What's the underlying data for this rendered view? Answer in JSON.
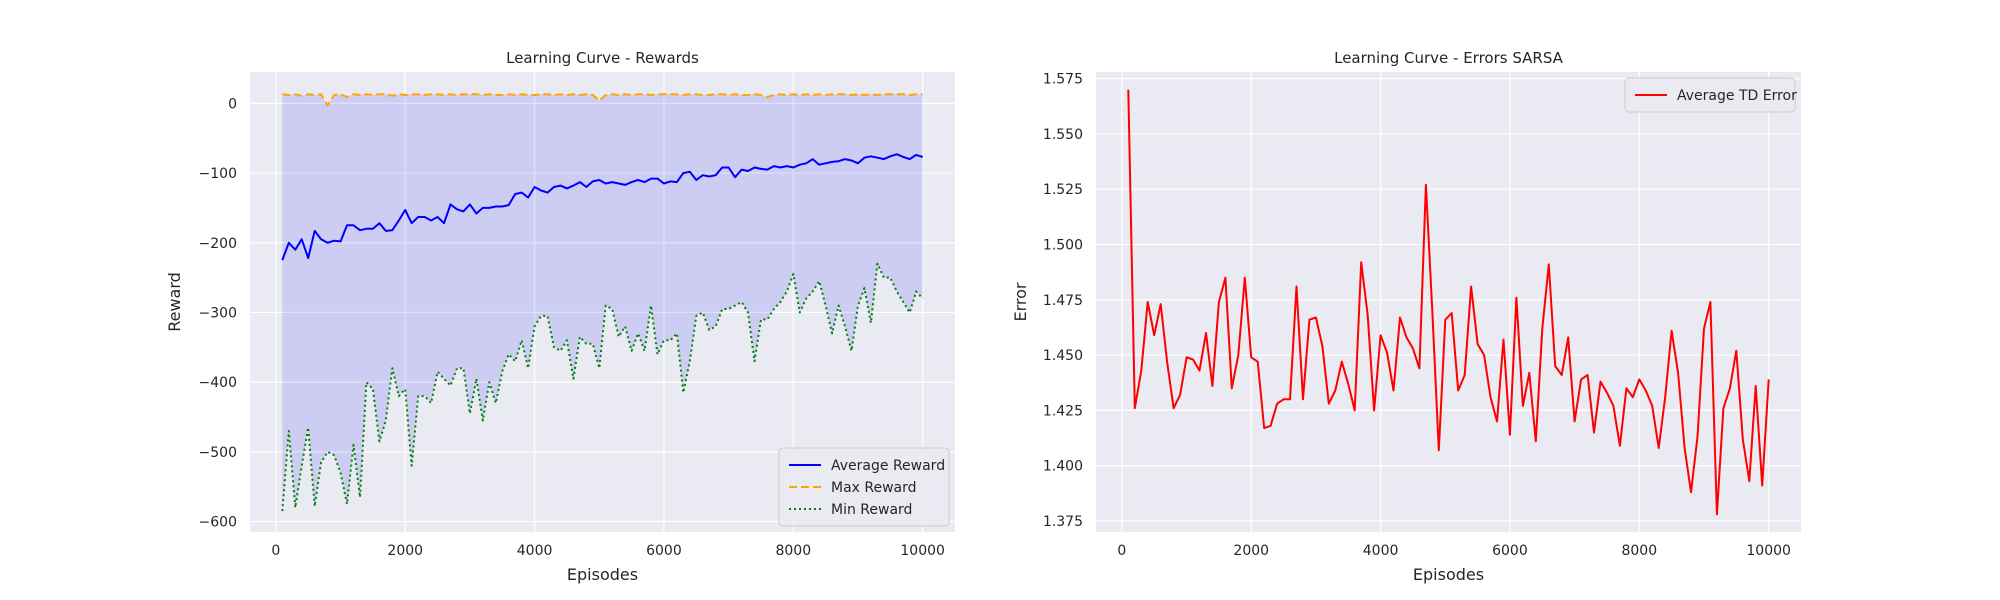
{
  "chart_data": [
    {
      "type": "line",
      "title": "Learning Curve - Rewards",
      "xlabel": "Episodes",
      "ylabel": "Reward",
      "xlim": [
        -400,
        10500
      ],
      "ylim": [
        -615,
        45
      ],
      "xticks": [
        0,
        2000,
        4000,
        6000,
        8000,
        10000
      ],
      "yticks": [
        0,
        -100,
        -200,
        -300,
        -400,
        -500,
        -600
      ],
      "grid": true,
      "legend_position": "lower-right",
      "fill_between": {
        "upper": "Max Reward",
        "lower": "Min Reward",
        "color": "#0000ff",
        "opacity": 0.12
      },
      "x": [
        100,
        200,
        300,
        400,
        500,
        600,
        700,
        800,
        900,
        1000,
        1100,
        1200,
        1300,
        1400,
        1500,
        1600,
        1700,
        1800,
        1900,
        2000,
        2100,
        2200,
        2300,
        2400,
        2500,
        2600,
        2700,
        2800,
        2900,
        3000,
        3100,
        3200,
        3300,
        3400,
        3500,
        3600,
        3700,
        3800,
        3900,
        4000,
        4100,
        4200,
        4300,
        4400,
        4500,
        4600,
        4700,
        4800,
        4900,
        5000,
        5100,
        5200,
        5300,
        5400,
        5500,
        5600,
        5700,
        5800,
        5900,
        6000,
        6100,
        6200,
        6300,
        6400,
        6500,
        6600,
        6700,
        6800,
        6900,
        7000,
        7100,
        7200,
        7300,
        7400,
        7500,
        7600,
        7700,
        7800,
        7900,
        8000,
        8100,
        8200,
        8300,
        8400,
        8500,
        8600,
        8700,
        8800,
        8900,
        9000,
        9100,
        9200,
        9300,
        9400,
        9500,
        9600,
        9700,
        9800,
        9900,
        10000
      ],
      "series": [
        {
          "name": "Average Reward",
          "color": "#0000ff",
          "dash": "solid",
          "values": [
            -225,
            -200,
            -210,
            -195,
            -222,
            -183,
            -195,
            -200,
            -197,
            -198,
            -175,
            -175,
            -182,
            -180,
            -180,
            -172,
            -183,
            -182,
            -168,
            -153,
            -172,
            -163,
            -163,
            -168,
            -163,
            -172,
            -145,
            -152,
            -155,
            -145,
            -158,
            -150,
            -150,
            -148,
            -148,
            -146,
            -130,
            -128,
            -135,
            -120,
            -125,
            -128,
            -120,
            -118,
            -122,
            -118,
            -113,
            -120,
            -112,
            -110,
            -115,
            -113,
            -115,
            -117,
            -113,
            -110,
            -113,
            -108,
            -108,
            -115,
            -112,
            -113,
            -100,
            -98,
            -110,
            -103,
            -105,
            -103,
            -92,
            -92,
            -106,
            -95,
            -97,
            -92,
            -94,
            -95,
            -90,
            -92,
            -90,
            -92,
            -88,
            -86,
            -80,
            -88,
            -86,
            -84,
            -83,
            -80,
            -82,
            -86,
            -78,
            -76,
            -78,
            -80,
            -76,
            -73,
            -77,
            -80,
            -74,
            -77
          ]
        },
        {
          "name": "Max Reward",
          "color": "#ffa500",
          "dash": "dashed",
          "values": [
            13,
            12,
            13,
            11,
            13,
            12,
            13,
            -3,
            12,
            13,
            9,
            13,
            12,
            13,
            12,
            13,
            13,
            11,
            13,
            12,
            13,
            13,
            12,
            13,
            13,
            12,
            13,
            12,
            13,
            13,
            13,
            12,
            13,
            12,
            12,
            13,
            12,
            13,
            12,
            12,
            13,
            13,
            12,
            13,
            12,
            13,
            12,
            13,
            12,
            4,
            12,
            13,
            12,
            13,
            12,
            13,
            13,
            12,
            13,
            13,
            13,
            13,
            12,
            13,
            13,
            12,
            12,
            13,
            13,
            12,
            13,
            12,
            12,
            13,
            12,
            9,
            12,
            13,
            12,
            13,
            12,
            13,
            12,
            13,
            12,
            13,
            13,
            13,
            12,
            13,
            12,
            13,
            12,
            13,
            13,
            13,
            13,
            12,
            13,
            13
          ]
        },
        {
          "name": "Min Reward",
          "color": "#008000",
          "dash": "dotted",
          "values": [
            -585,
            -470,
            -580,
            -520,
            -465,
            -578,
            -515,
            -500,
            -505,
            -530,
            -575,
            -490,
            -565,
            -400,
            -410,
            -485,
            -455,
            -380,
            -420,
            -410,
            -520,
            -420,
            -420,
            -430,
            -385,
            -395,
            -405,
            -380,
            -380,
            -445,
            -395,
            -455,
            -400,
            -430,
            -385,
            -360,
            -370,
            -340,
            -380,
            -320,
            -305,
            -305,
            -350,
            -355,
            -340,
            -395,
            -335,
            -345,
            -345,
            -380,
            -290,
            -295,
            -335,
            -320,
            -355,
            -330,
            -355,
            -290,
            -360,
            -340,
            -340,
            -330,
            -415,
            -370,
            -305,
            -300,
            -325,
            -320,
            -295,
            -295,
            -290,
            -285,
            -300,
            -370,
            -310,
            -310,
            -295,
            -285,
            -270,
            -245,
            -300,
            -280,
            -270,
            -255,
            -290,
            -330,
            -290,
            -320,
            -355,
            -290,
            -265,
            -315,
            -230,
            -250,
            -250,
            -270,
            -285,
            -300,
            -270,
            -280
          ]
        }
      ]
    },
    {
      "type": "line",
      "title": "Learning Curve - Errors SARSA",
      "xlabel": "Episodes",
      "ylabel": "Error",
      "xlim": [
        -400,
        10500
      ],
      "ylim": [
        1.37,
        1.578
      ],
      "xticks": [
        0,
        2000,
        4000,
        6000,
        8000,
        10000
      ],
      "yticks": [
        1.375,
        1.4,
        1.425,
        1.45,
        1.475,
        1.5,
        1.525,
        1.55,
        1.575
      ],
      "ytick_labels": [
        "1.375",
        "1.400",
        "1.425",
        "1.450",
        "1.475",
        "1.500",
        "1.525",
        "1.550",
        "1.575"
      ],
      "grid": true,
      "legend_position": "top-right",
      "x": [
        100,
        200,
        300,
        400,
        500,
        600,
        700,
        800,
        900,
        1000,
        1100,
        1200,
        1300,
        1400,
        1500,
        1600,
        1700,
        1800,
        1900,
        2000,
        2100,
        2200,
        2300,
        2400,
        2500,
        2600,
        2700,
        2800,
        2900,
        3000,
        3100,
        3200,
        3300,
        3400,
        3500,
        3600,
        3700,
        3800,
        3900,
        4000,
        4100,
        4200,
        4300,
        4400,
        4500,
        4600,
        4700,
        4800,
        4900,
        5000,
        5100,
        5200,
        5300,
        5400,
        5500,
        5600,
        5700,
        5800,
        5900,
        6000,
        6100,
        6200,
        6300,
        6400,
        6500,
        6600,
        6700,
        6800,
        6900,
        7000,
        7100,
        7200,
        7300,
        7400,
        7500,
        7600,
        7700,
        7800,
        7900,
        8000,
        8100,
        8200,
        8300,
        8400,
        8500,
        8600,
        8700,
        8800,
        8900,
        9000,
        9100,
        9200,
        9300,
        9400,
        9500,
        9600,
        9700,
        9800,
        9900,
        10000
      ],
      "series": [
        {
          "name": "Average TD Error",
          "color": "#ff0000",
          "dash": "solid",
          "values": [
            1.57,
            1.426,
            1.443,
            1.474,
            1.459,
            1.473,
            1.447,
            1.426,
            1.432,
            1.449,
            1.448,
            1.443,
            1.46,
            1.436,
            1.474,
            1.485,
            1.435,
            1.45,
            1.485,
            1.449,
            1.447,
            1.417,
            1.418,
            1.428,
            1.43,
            1.43,
            1.481,
            1.43,
            1.466,
            1.467,
            1.454,
            1.428,
            1.434,
            1.447,
            1.437,
            1.425,
            1.492,
            1.468,
            1.425,
            1.459,
            1.451,
            1.434,
            1.467,
            1.458,
            1.453,
            1.444,
            1.527,
            1.47,
            1.407,
            1.466,
            1.469,
            1.434,
            1.441,
            1.481,
            1.455,
            1.45,
            1.431,
            1.42,
            1.457,
            1.414,
            1.476,
            1.427,
            1.442,
            1.411,
            1.462,
            1.491,
            1.445,
            1.441,
            1.458,
            1.42,
            1.439,
            1.441,
            1.415,
            1.438,
            1.433,
            1.427,
            1.409,
            1.435,
            1.431,
            1.439,
            1.434,
            1.427,
            1.408,
            1.431,
            1.461,
            1.442,
            1.408,
            1.388,
            1.413,
            1.462,
            1.474,
            1.378,
            1.426,
            1.435,
            1.452,
            1.412,
            1.393,
            1.436,
            1.391,
            1.439
          ]
        }
      ]
    }
  ]
}
